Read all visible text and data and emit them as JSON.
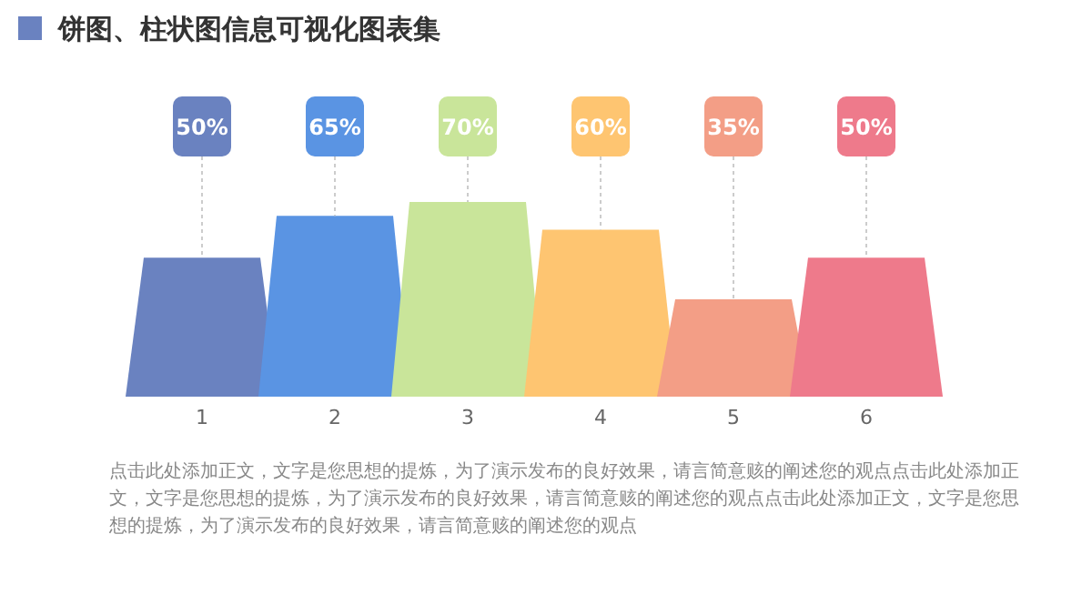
{
  "chart_data": {
    "type": "bar",
    "title": "饼图、柱状图信息可视化图表集",
    "categories": [
      "1",
      "2",
      "3",
      "4",
      "5",
      "6"
    ],
    "values": [
      50,
      65,
      70,
      60,
      35,
      50
    ],
    "value_labels": [
      "50%",
      "65%",
      "70%",
      "60%",
      "35%",
      "50%"
    ],
    "colors": [
      "#6a82c0",
      "#5a94e3",
      "#c9e59a",
      "#fec571",
      "#f39e86",
      "#ee7a8b"
    ],
    "annotations": [
      "点击此处添加正文，文字是您思想的提炼，为了演示发布的良好效果，请言简意赅的阐述您的观点点击此处添加正文，文字是您思想的提炼，为了演示发布的良好效果，请言简意赅的阐述您的观点点击此处添加正文，文字是您思想的提炼，为了演示发布的良好效果，请言简意赅的阐述您的观点"
    ]
  }
}
